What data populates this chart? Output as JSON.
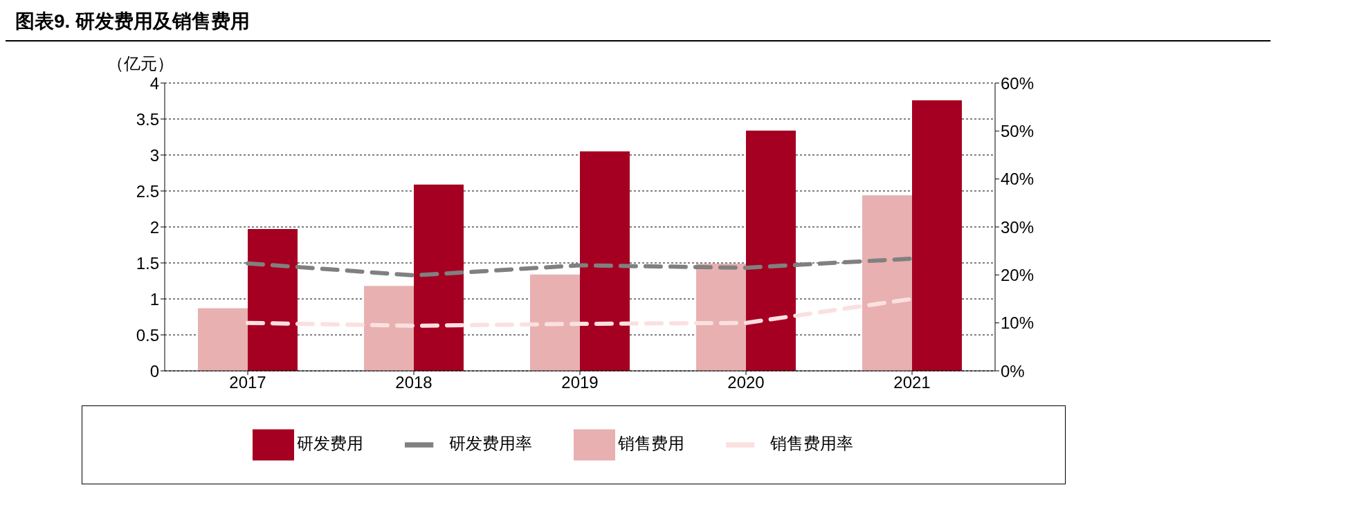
{
  "chart_data": {
    "type": "bar",
    "title": "图表9. 研发费用及销售费用",
    "ylabel": "（亿元）",
    "categories": [
      "2017",
      "2018",
      "2019",
      "2020",
      "2021"
    ],
    "series": [
      {
        "name": "销售费用",
        "color": "#e8b0b0",
        "values": [
          0.87,
          1.18,
          1.34,
          1.49,
          2.44
        ]
      },
      {
        "name": "研发费用",
        "color": "#a50021",
        "values": [
          1.97,
          2.59,
          3.05,
          3.34,
          3.76
        ]
      },
      {
        "name": "销售费用率",
        "type": "line",
        "axis": "y2",
        "color": "#fbe0e0",
        "values": [
          10,
          9.4,
          9.8,
          10,
          15
        ]
      },
      {
        "name": "研发费用率",
        "type": "line",
        "axis": "y2",
        "color": "#808080",
        "values": [
          22.4,
          19.9,
          22,
          21.5,
          23.4
        ]
      }
    ],
    "ylim": [
      0,
      4
    ],
    "yticks": [
      0,
      0.5,
      1,
      1.5,
      2,
      2.5,
      3,
      3.5,
      4
    ],
    "y2lim": [
      0,
      60
    ],
    "y2ticks": [
      {
        "value": 0,
        "label": "0%"
      },
      {
        "value": 10,
        "label": "10%"
      },
      {
        "value": 20,
        "label": "20%"
      },
      {
        "value": 30,
        "label": "30%"
      },
      {
        "value": 40,
        "label": "40%"
      },
      {
        "value": 50,
        "label": "50%"
      },
      {
        "value": 60,
        "label": "60%"
      }
    ],
    "grid": "y",
    "legend": "bottom",
    "line_style": "dashed",
    "marker": "none"
  }
}
